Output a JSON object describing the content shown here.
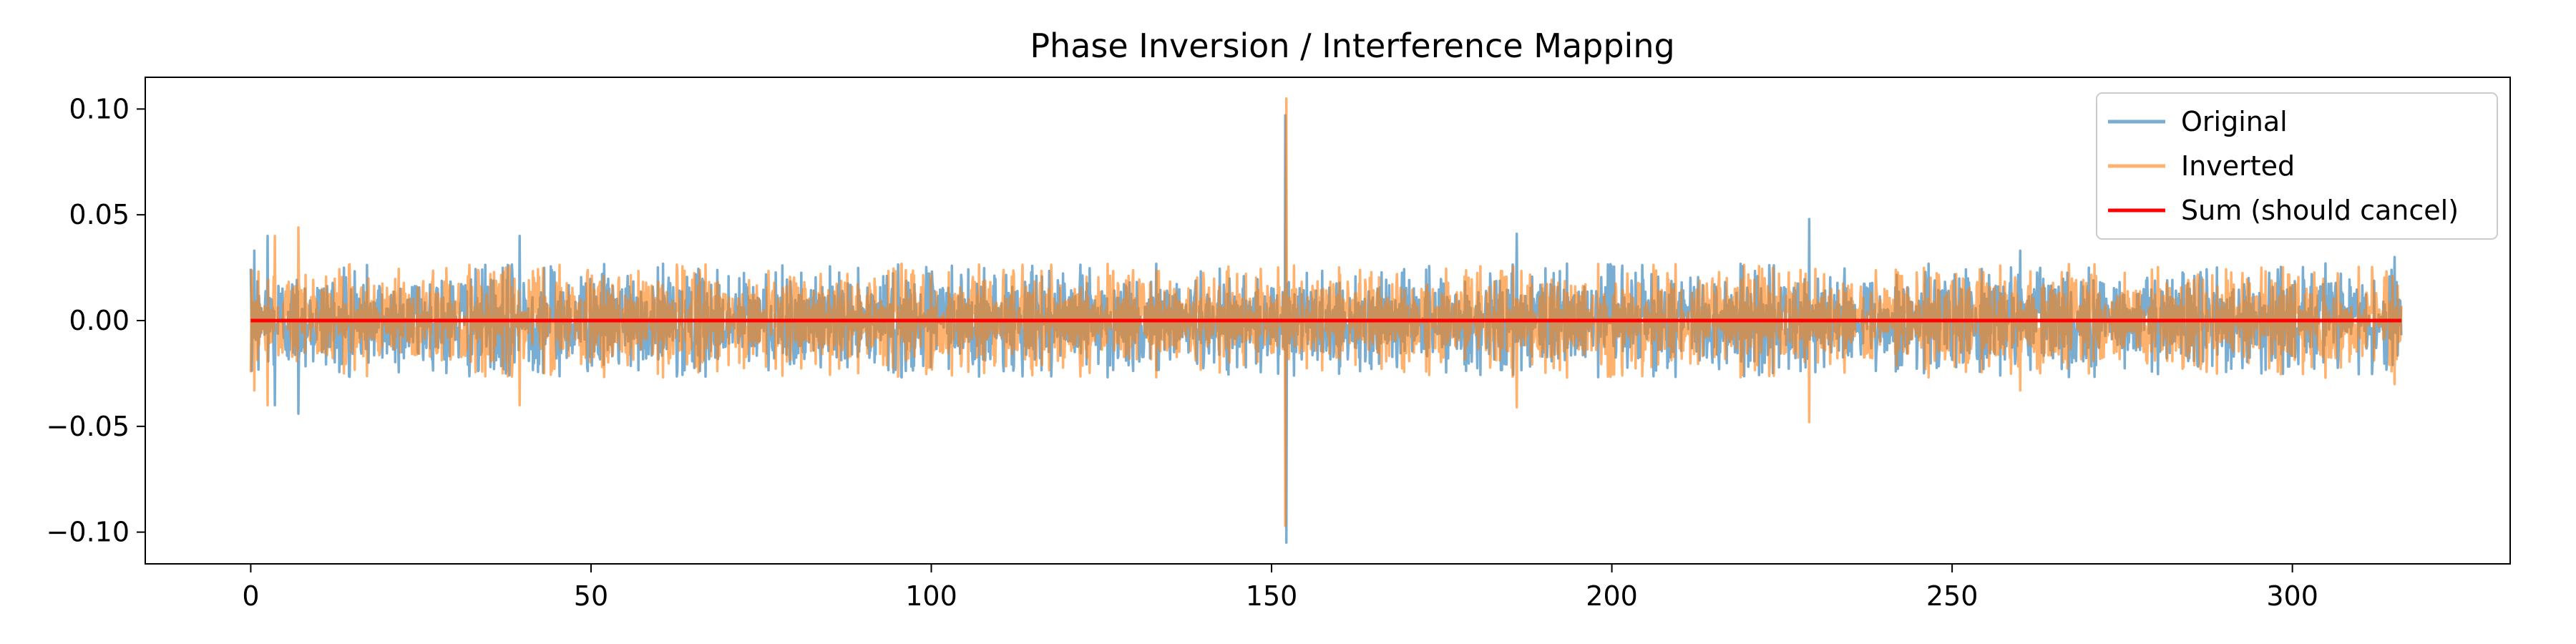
{
  "chart_data": {
    "type": "line",
    "title": "Phase Inversion / Interference Mapping",
    "xlabel": "",
    "ylabel": "",
    "xlim": [
      -15.5,
      332
    ],
    "ylim": [
      -0.115,
      0.115
    ],
    "x_ticks": [
      0,
      50,
      100,
      150,
      200,
      250,
      300
    ],
    "x_tick_labels": [
      "0",
      "50",
      "100",
      "150",
      "200",
      "250",
      "300"
    ],
    "y_ticks": [
      -0.1,
      -0.05,
      0.0,
      0.05,
      0.1
    ],
    "y_tick_labels": [
      "−0.10",
      "−0.05",
      "0.00",
      "0.05",
      "0.10"
    ],
    "grid": false,
    "legend_position": "top-right",
    "x_range": [
      0,
      316
    ],
    "series": [
      {
        "name": "Original",
        "color": "#1f77b4",
        "alpha": 0.6,
        "description_values": {
          "typical_envelope": 0.027,
          "peaks": [
            {
              "x": 0.5,
              "y": 0.033
            },
            {
              "x": 2.5,
              "y": 0.04
            },
            {
              "x": 3.5,
              "y": -0.04
            },
            {
              "x": 7,
              "y": -0.044
            },
            {
              "x": 39.5,
              "y": 0.04
            },
            {
              "x": 152,
              "y": 0.097
            },
            {
              "x": 152.2,
              "y": -0.105
            },
            {
              "x": 186,
              "y": 0.041
            },
            {
              "x": 229,
              "y": 0.048
            },
            {
              "x": 260,
              "y": 0.033
            },
            {
              "x": 315,
              "y": 0.03
            }
          ]
        }
      },
      {
        "name": "Inverted",
        "color": "#ff7f0e",
        "alpha": 0.6,
        "description_values": {
          "typical_envelope": 0.027,
          "peaks": [
            {
              "x": 2.5,
              "y": -0.04
            },
            {
              "x": 3.5,
              "y": 0.04
            },
            {
              "x": 7,
              "y": 0.044
            },
            {
              "x": 39.5,
              "y": -0.04
            },
            {
              "x": 152,
              "y": -0.097
            },
            {
              "x": 152.2,
              "y": 0.105
            },
            {
              "x": 186,
              "y": -0.041
            },
            {
              "x": 229,
              "y": -0.048
            },
            {
              "x": 260,
              "y": -0.033
            }
          ]
        }
      },
      {
        "name": "Sum (should cancel)",
        "color": "#ff0000",
        "alpha": 1.0,
        "x": [
          0,
          316
        ],
        "y": [
          0,
          0
        ]
      }
    ]
  }
}
